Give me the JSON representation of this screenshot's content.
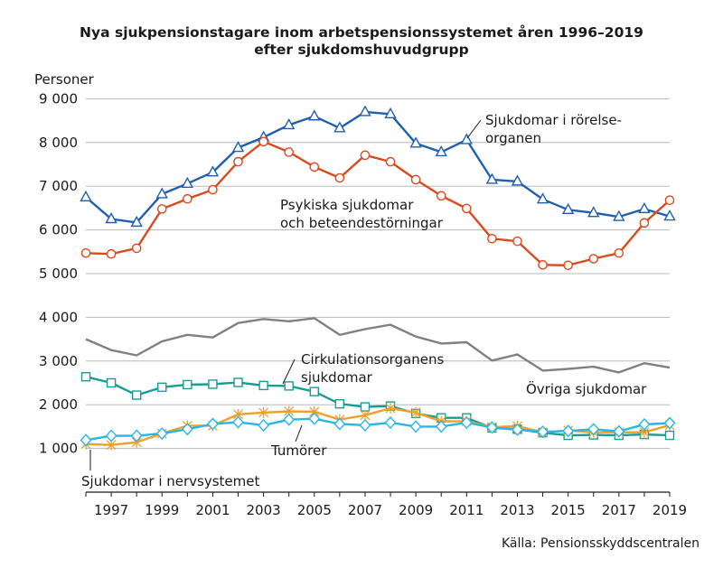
{
  "title_line1": "Nya sjukpensionstagare inom arbetspensionssystemet åren 1996–2019",
  "title_line2": "efter sjukdomshuvudgrupp",
  "ylabel": "Personer",
  "source": "Källa: Pensionsskyddscentralen",
  "chart_data": {
    "type": "line",
    "title": "Nya sjukpensionstagare inom arbetspensionssystemet åren 1996–2019 efter sjukdomshuvudgrupp",
    "xlabel": "",
    "ylabel": "Personer",
    "ylim": [
      0,
      9000
    ],
    "y_ticks": [
      {
        "value": 1000,
        "label": "1 000"
      },
      {
        "value": 2000,
        "label": "2 000"
      },
      {
        "value": 3000,
        "label": "3 000"
      },
      {
        "value": 4000,
        "label": "4 000"
      },
      {
        "value": 5000,
        "label": "5 000"
      },
      {
        "value": 6000,
        "label": "6 000"
      },
      {
        "value": 7000,
        "label": "7 000"
      },
      {
        "value": 8000,
        "label": "8 000"
      },
      {
        "value": 9000,
        "label": "9 000"
      }
    ],
    "x_tick_labels": [
      "1997",
      "1999",
      "2001",
      "2003",
      "2005",
      "2007",
      "2009",
      "2011",
      "2013",
      "2015",
      "2017",
      "2019"
    ],
    "x": [
      1996,
      1997,
      1998,
      1999,
      2000,
      2001,
      2002,
      2003,
      2004,
      2005,
      2006,
      2007,
      2008,
      2009,
      2010,
      2011,
      2012,
      2013,
      2014,
      2015,
      2016,
      2017,
      2018,
      2019
    ],
    "grid": "horizontal",
    "series": [
      {
        "name": "Sjukdomar i rörelse-organen",
        "label_lines": [
          "Sjukdomar i rörelse-",
          "organen"
        ],
        "color": "#1f5fb2",
        "marker": "triangle",
        "values": [
          6750,
          6250,
          6170,
          6820,
          7060,
          7320,
          7880,
          8120,
          8400,
          8600,
          8330,
          8700,
          8650,
          7980,
          7780,
          8060,
          7150,
          7110,
          6700,
          6460,
          6390,
          6300,
          6480,
          6310
        ]
      },
      {
        "name": "Psykiska sjukdomar och beteendestörningar",
        "label_lines": [
          "Psykiska sjukdomar",
          "och beteendestörningar"
        ],
        "color": "#d94a1e",
        "marker": "circle",
        "values": [
          5470,
          5450,
          5580,
          6480,
          6710,
          6920,
          7560,
          8020,
          7780,
          7440,
          7190,
          7710,
          7560,
          7150,
          6780,
          6490,
          5800,
          5740,
          5200,
          5190,
          5340,
          5470,
          6160,
          6680
        ]
      },
      {
        "name": "Övriga sjukdomar",
        "label_lines": [
          "Övriga sjukdomar"
        ],
        "color": "#808080",
        "marker": "none",
        "values": [
          3500,
          3250,
          3130,
          3450,
          3600,
          3540,
          3870,
          3960,
          3910,
          3980,
          3600,
          3730,
          3830,
          3560,
          3400,
          3430,
          3010,
          3150,
          2780,
          2820,
          2870,
          2740,
          2950,
          2850
        ]
      },
      {
        "name": "Cirkulationsorganens sjukdomar",
        "label_lines": [
          "Cirkulationsorganens",
          "sjukdomar"
        ],
        "color": "#1a9c96",
        "marker": "square",
        "values": [
          2640,
          2500,
          2220,
          2400,
          2460,
          2470,
          2510,
          2440,
          2430,
          2300,
          2020,
          1950,
          1970,
          1800,
          1700,
          1700,
          1470,
          1440,
          1360,
          1300,
          1310,
          1300,
          1320,
          1300
        ]
      },
      {
        "name": "Tumörer",
        "label_lines": [
          "Tumörer"
        ],
        "color": "#eda12b",
        "marker": "star",
        "values": [
          1100,
          1080,
          1140,
          1340,
          1520,
          1520,
          1780,
          1820,
          1850,
          1840,
          1660,
          1760,
          1920,
          1820,
          1620,
          1620,
          1490,
          1510,
          1370,
          1410,
          1370,
          1370,
          1370,
          1530
        ]
      },
      {
        "name": "Sjukdomar i nervsystemet",
        "label_lines": [
          "Sjukdomar i nervsystemet"
        ],
        "color": "#29b6e6",
        "marker": "diamond",
        "values": [
          1190,
          1290,
          1290,
          1340,
          1440,
          1560,
          1600,
          1530,
          1660,
          1680,
          1560,
          1530,
          1590,
          1500,
          1500,
          1590,
          1480,
          1430,
          1380,
          1400,
          1440,
          1390,
          1550,
          1580
        ]
      }
    ]
  }
}
